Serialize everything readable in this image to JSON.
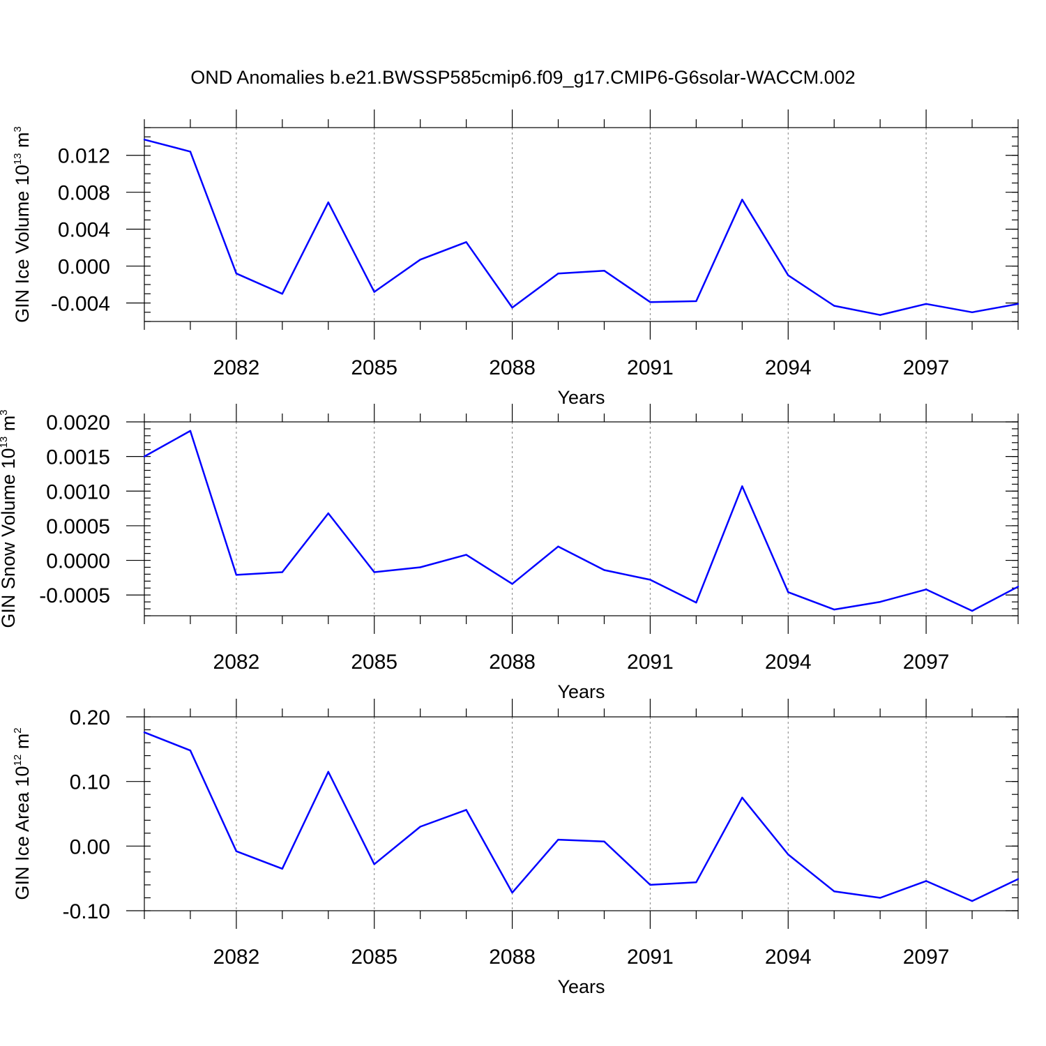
{
  "figure": {
    "title": "OND Anomalies b.e21.BWSSP585cmip6.f09_g17.CMIP6-G6solar-WACCM.002"
  },
  "colors": {
    "line": "#0000ff",
    "axis": "#000000",
    "grid": "#808080"
  },
  "chart_data": [
    {
      "type": "line",
      "xlabel": "Years",
      "ylabel": {
        "main": "GIN Ice Volume 10",
        "exp": "13",
        "unit": "m",
        "unit_exp": "3"
      },
      "xlim": [
        2080,
        2099
      ],
      "ylim": [
        -0.006,
        0.015
      ],
      "x_ticks": [
        2082,
        2085,
        2088,
        2091,
        2094,
        2097
      ],
      "x_tick_labels": [
        "2082",
        "2085",
        "2088",
        "2091",
        "2094",
        "2097"
      ],
      "y_ticks": [
        -0.004,
        0.0,
        0.004,
        0.008,
        0.012
      ],
      "y_tick_labels": [
        "-0.004",
        "0.000",
        "0.004",
        "0.008",
        "0.012"
      ],
      "y_minor_step": 0.001,
      "grid": "vertical dashed at major x ticks",
      "x": [
        2080,
        2081,
        2082,
        2083,
        2084,
        2085,
        2086,
        2087,
        2088,
        2089,
        2090,
        2091,
        2092,
        2093,
        2094,
        2095,
        2096,
        2097,
        2098,
        2099
      ],
      "values": [
        0.0137,
        0.0124,
        -0.0008,
        -0.003,
        0.0069,
        -0.0028,
        0.0007,
        0.0026,
        -0.0045,
        -0.0008,
        -0.0005,
        -0.0039,
        -0.0038,
        0.0072,
        -0.001,
        -0.0043,
        -0.0053,
        -0.0041,
        -0.005,
        -0.0041
      ]
    },
    {
      "type": "line",
      "xlabel": "Years",
      "ylabel": {
        "main": "GIN Snow Volume 10",
        "exp": "13",
        "unit": "m",
        "unit_exp": "3"
      },
      "xlim": [
        2080,
        2099
      ],
      "ylim": [
        -0.0008,
        0.002
      ],
      "x_ticks": [
        2082,
        2085,
        2088,
        2091,
        2094,
        2097
      ],
      "x_tick_labels": [
        "2082",
        "2085",
        "2088",
        "2091",
        "2094",
        "2097"
      ],
      "y_ticks": [
        -0.0005,
        0.0,
        0.0005,
        0.001,
        0.0015,
        0.002
      ],
      "y_tick_labels": [
        "-0.0005",
        "0.0000",
        "0.0005",
        "0.0010",
        "0.0015",
        "0.0020"
      ],
      "y_minor_step": 0.0001,
      "grid": "vertical dashed at major x ticks",
      "x": [
        2080,
        2081,
        2082,
        2083,
        2084,
        2085,
        2086,
        2087,
        2088,
        2089,
        2090,
        2091,
        2092,
        2093,
        2094,
        2095,
        2096,
        2097,
        2098,
        2099
      ],
      "values": [
        0.0015,
        0.00187,
        -0.00021,
        -0.00017,
        0.00068,
        -0.00017,
        -0.0001,
        8e-05,
        -0.00034,
        0.0002,
        -0.00014,
        -0.00028,
        -0.00061,
        0.00107,
        -0.00046,
        -0.00071,
        -0.0006,
        -0.00042,
        -0.00073,
        -0.00038
      ]
    },
    {
      "type": "line",
      "xlabel": "Years",
      "ylabel": {
        "main": "GIN Ice Area 10",
        "exp": "12",
        "unit": "m",
        "unit_exp": "2"
      },
      "xlim": [
        2080,
        2099
      ],
      "ylim": [
        -0.1,
        0.2
      ],
      "x_ticks": [
        2082,
        2085,
        2088,
        2091,
        2094,
        2097
      ],
      "x_tick_labels": [
        "2082",
        "2085",
        "2088",
        "2091",
        "2094",
        "2097"
      ],
      "y_ticks": [
        -0.1,
        0.0,
        0.1,
        0.2
      ],
      "y_tick_labels": [
        "-0.10",
        "0.00",
        "0.10",
        "0.20"
      ],
      "y_minor_step": 0.02,
      "grid": "vertical dashed at major x ticks",
      "x": [
        2080,
        2081,
        2082,
        2083,
        2084,
        2085,
        2086,
        2087,
        2088,
        2089,
        2090,
        2091,
        2092,
        2093,
        2094,
        2095,
        2096,
        2097,
        2098,
        2099
      ],
      "values": [
        0.176,
        0.148,
        -0.008,
        -0.035,
        0.115,
        -0.028,
        0.03,
        0.056,
        -0.072,
        0.01,
        0.007,
        -0.06,
        -0.056,
        0.075,
        -0.013,
        -0.07,
        -0.08,
        -0.054,
        -0.085,
        -0.051
      ]
    }
  ]
}
